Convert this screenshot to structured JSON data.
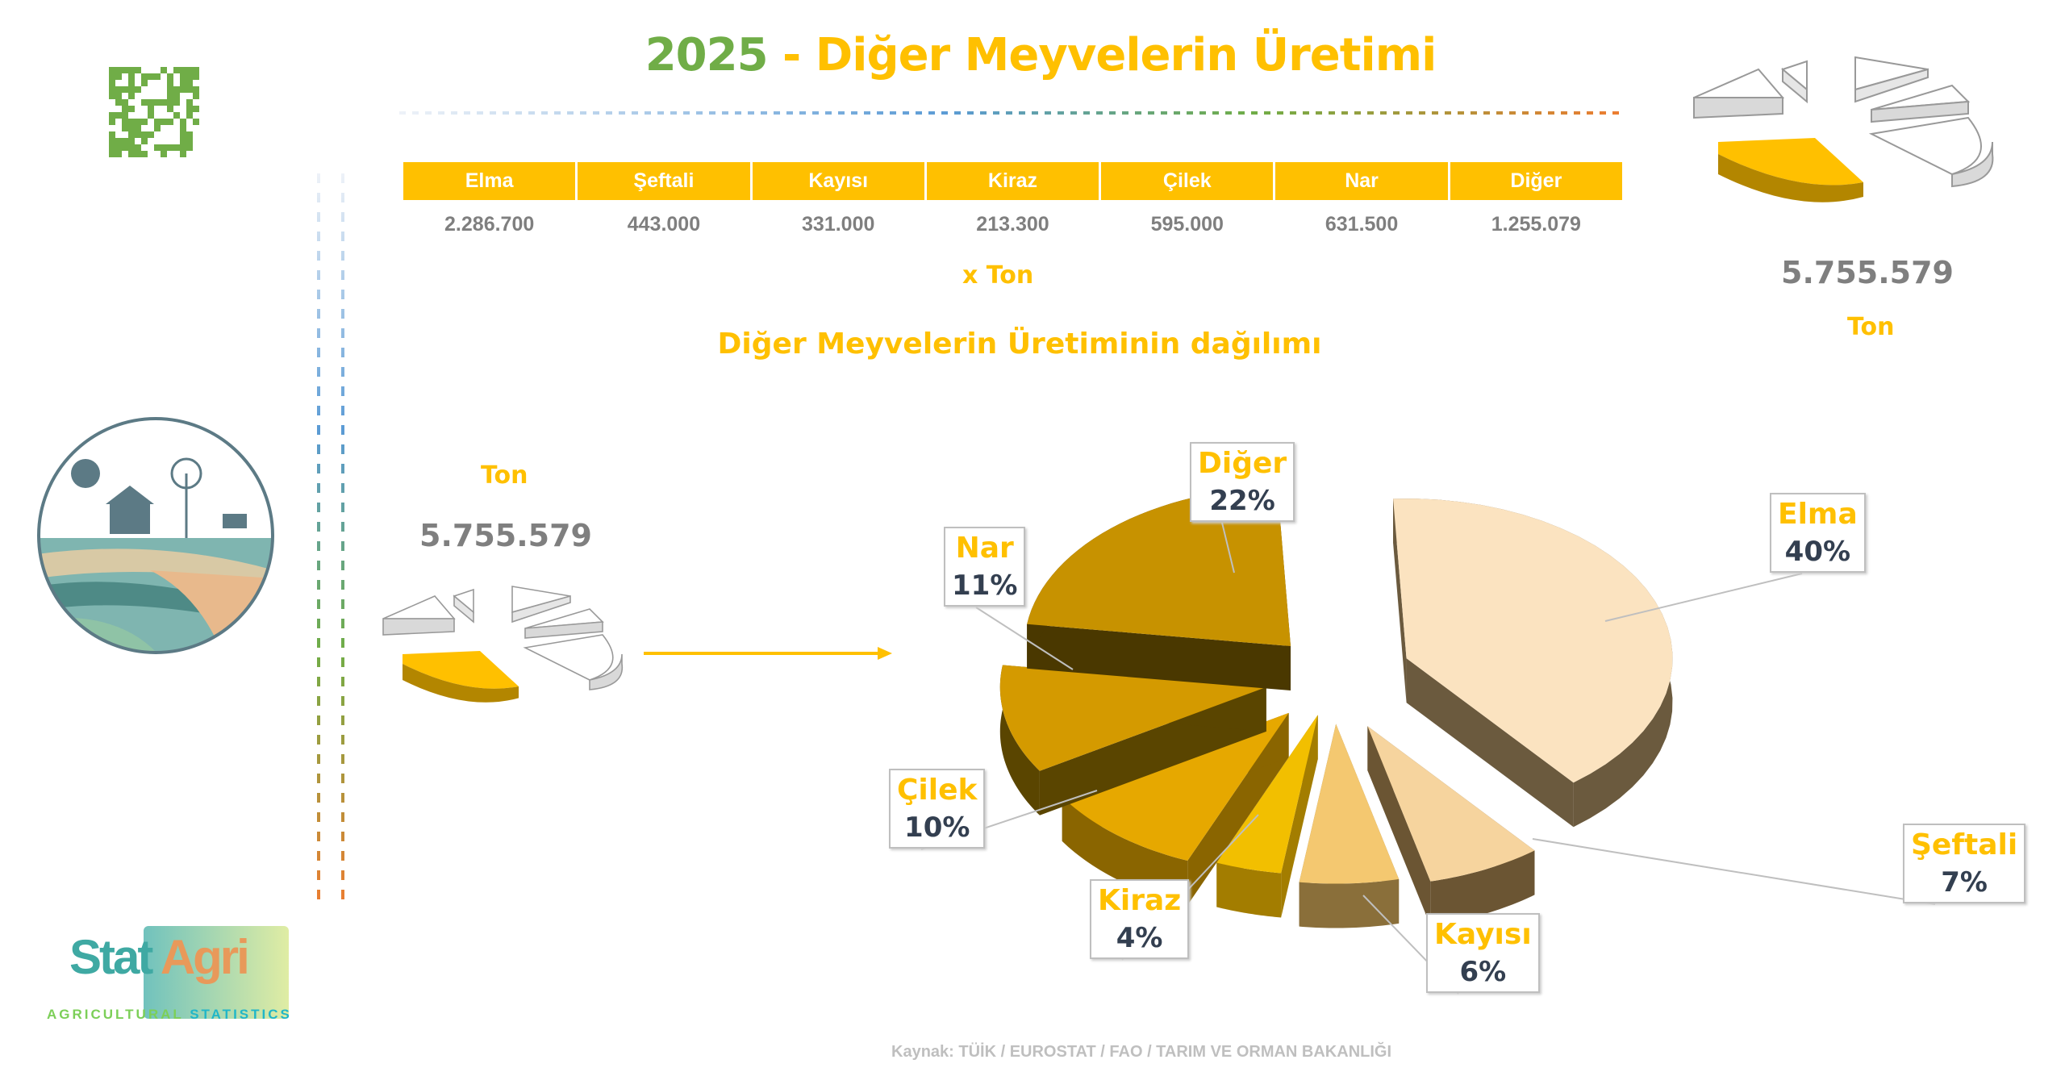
{
  "title": {
    "year": "2025",
    "text": " - Diğer Meyvelerin Üretimi"
  },
  "table": {
    "headers": [
      "Elma",
      "Şeftali",
      "Kayısı",
      "Kiraz",
      "Çilek",
      "Nar",
      "Diğer"
    ],
    "values": [
      "2.286.700",
      "443.000",
      "331.000",
      "213.300",
      "595.000",
      "631.500",
      "1.255.079"
    ]
  },
  "unit": "x  Ton",
  "total": {
    "value": "5.755.579",
    "unit": "Ton"
  },
  "footer": "Kaynak: TÜİK / EUROSTAT / FAO / TARIM VE ORMAN BAKANLIĞI",
  "logo": {
    "stat": "Stat",
    "agri": "Agri",
    "tagline1": "AGRICULTURAL",
    "tagline2": "STATISTICS"
  },
  "colors": {
    "yellow": "#ffc000",
    "green": "#70ad47",
    "gray": "#7f7f7f"
  },
  "chart_data": {
    "type": "pie",
    "title": "Diğer Meyvelerin Üretiminin dağılımı",
    "categories": [
      "Elma",
      "Şeftali",
      "Kayısı",
      "Kiraz",
      "Çilek",
      "Nar",
      "Diğer"
    ],
    "values": [
      40,
      7,
      6,
      4,
      10,
      11,
      22
    ],
    "labels": [
      "40%",
      "7%",
      "6%",
      "4%",
      "10%",
      "11%",
      "22%"
    ],
    "style": "3d-exploded"
  }
}
